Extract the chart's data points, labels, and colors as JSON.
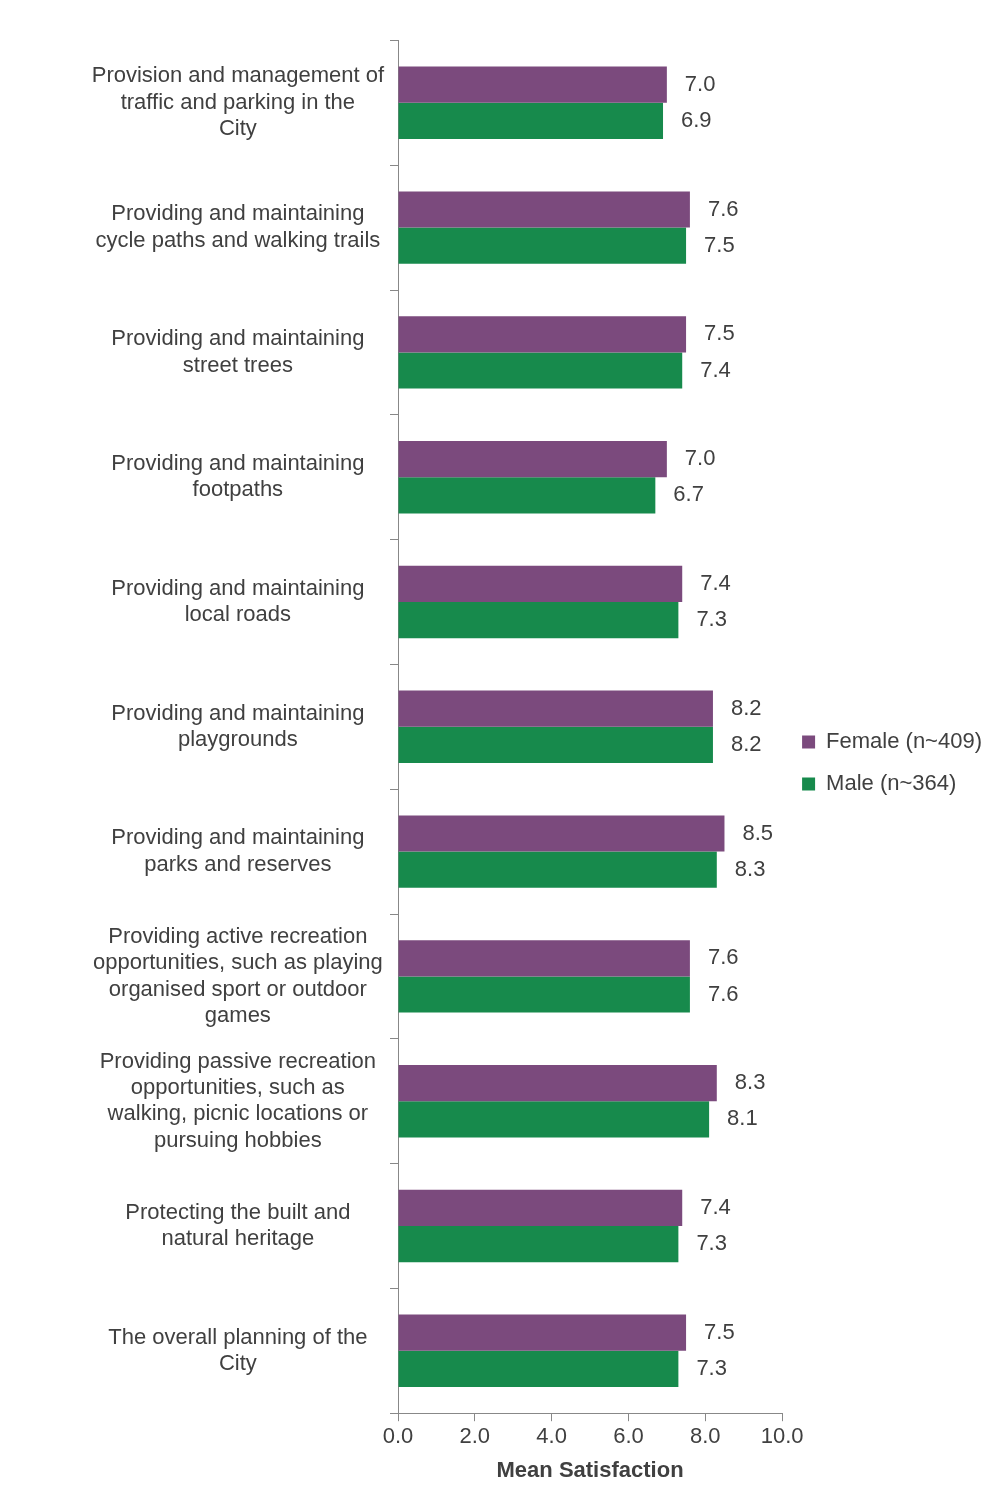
{
  "chart_data": {
    "type": "bar",
    "orientation": "horizontal",
    "xlabel": "Mean Satisfaction",
    "categories": [
      "Provision and management of traffic and parking in the City",
      "Providing and maintaining cycle paths and walking trails",
      "Providing and maintaining street trees",
      "Providing and maintaining footpaths",
      "Providing and maintaining local roads",
      "Providing and maintaining playgrounds",
      "Providing and maintaining parks and reserves",
      "Providing active recreation opportunities, such as playing organised sport or outdoor games",
      "Providing passive recreation opportunities, such as walking, picnic locations or pursuing hobbies",
      "Protecting the built and natural heritage",
      "The overall planning of the City"
    ],
    "series": [
      {
        "name": "Female (n~409)",
        "color": "#7b4a7d",
        "values": [
          7.0,
          7.6,
          7.5,
          7.0,
          7.4,
          8.2,
          8.5,
          7.6,
          8.3,
          7.4,
          7.5
        ],
        "value_labels": [
          "7.0",
          "7.6",
          "7.5",
          "7.0",
          "7.4",
          "8.2",
          "8.5",
          "7.6",
          "8.3",
          "7.4",
          "7.5"
        ]
      },
      {
        "name": "Male (n~364)",
        "color": "#178a4c",
        "values": [
          6.9,
          7.5,
          7.4,
          6.7,
          7.3,
          8.2,
          8.3,
          7.6,
          8.1,
          7.3,
          7.3
        ],
        "value_labels": [
          "6.9",
          "7.5",
          "7.4",
          "6.7",
          "7.3",
          "8.2",
          "8.3",
          "7.6",
          "8.1",
          "7.3",
          "7.3"
        ]
      }
    ],
    "xlim": [
      0,
      10
    ],
    "xticks": [
      {
        "value": 0,
        "label": "0.0"
      },
      {
        "value": 2,
        "label": "2.0"
      },
      {
        "value": 4,
        "label": "4.0"
      },
      {
        "value": 6,
        "label": "6.0"
      },
      {
        "value": 8,
        "label": "8.0"
      },
      {
        "value": 10,
        "label": "10.0"
      }
    ],
    "grid": false,
    "legend": "right"
  }
}
